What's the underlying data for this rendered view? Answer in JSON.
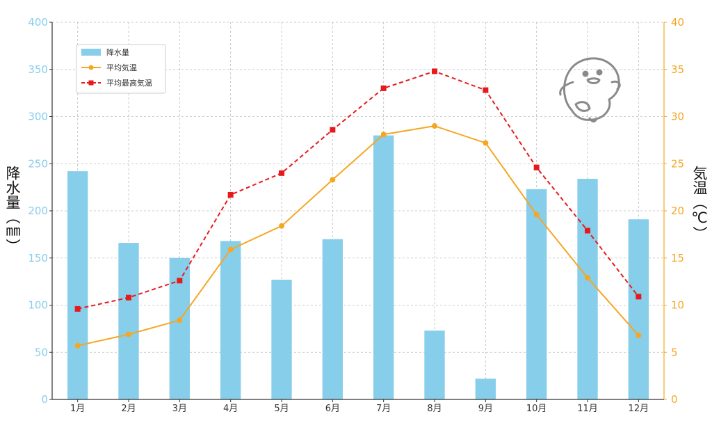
{
  "chart_data": {
    "type": "bar",
    "categories": [
      "1月",
      "2月",
      "3月",
      "4月",
      "5月",
      "6月",
      "7月",
      "8月",
      "9月",
      "10月",
      "11月",
      "12月"
    ],
    "series": [
      {
        "name": "降水量",
        "type": "bar",
        "axis": "left",
        "color": "#87CEEB",
        "values": [
          242,
          166,
          150,
          168,
          127,
          170,
          280,
          73,
          22,
          223,
          234,
          191
        ]
      },
      {
        "name": "平均気温",
        "type": "line",
        "axis": "right",
        "color": "#F5A623",
        "values": [
          5.7,
          6.9,
          8.4,
          15.9,
          18.4,
          23.3,
          28.1,
          29.0,
          27.2,
          19.6,
          12.9,
          6.8
        ]
      },
      {
        "name": "平均最高気温",
        "type": "line",
        "axis": "right",
        "color": "#E8191C",
        "dashed": true,
        "values": [
          9.6,
          10.8,
          12.6,
          21.7,
          24.0,
          28.6,
          33.0,
          34.8,
          32.8,
          24.6,
          17.9,
          10.9
        ]
      }
    ],
    "y_left": {
      "label": "降水量（㎜）",
      "ylim": [
        0,
        400
      ],
      "ticks": [
        "0",
        "50",
        "100",
        "150",
        "200",
        "250",
        "300",
        "350",
        "400"
      ]
    },
    "y_right": {
      "label": "気温（℃）",
      "ylim": [
        0,
        40
      ],
      "ticks": [
        "0",
        "5",
        "10",
        "15",
        "20",
        "25",
        "30",
        "35",
        "40"
      ]
    },
    "grid": true,
    "legend_position": "top-left"
  },
  "colors": {
    "precip": "#87CEEB",
    "temp": "#F5A623",
    "max_temp": "#E8191C",
    "left_axis": "#87CEEB",
    "right_axis": "#F5A623"
  },
  "decoration": {
    "icon": "ghost-mascot-icon"
  }
}
